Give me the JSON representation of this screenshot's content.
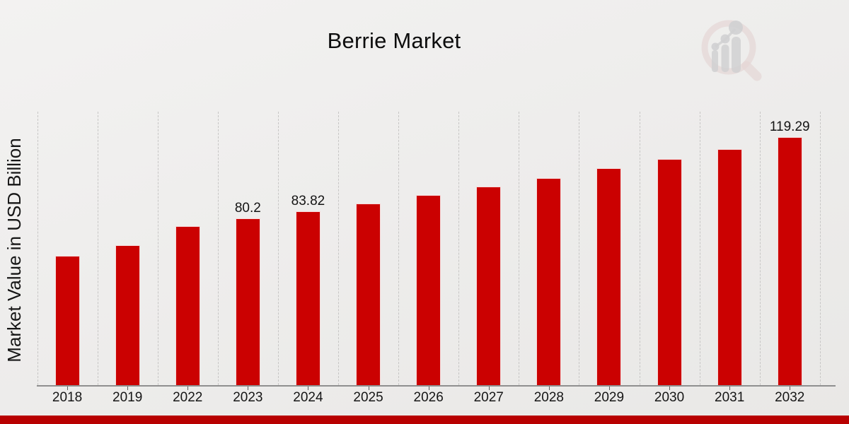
{
  "page": {
    "title": "Berrie Market"
  },
  "y_axis": {
    "label": "Market Value in USD Billion"
  },
  "watermark": {
    "icon": "market-research-magnifier-logo"
  },
  "footer": {
    "accent_color": "#b80000"
  },
  "chart_data": {
    "type": "bar",
    "title": "Berrie Market",
    "xlabel": "",
    "ylabel": "Market Value in USD Billion",
    "categories": [
      "2018",
      "2019",
      "2022",
      "2023",
      "2024",
      "2025",
      "2026",
      "2027",
      "2028",
      "2029",
      "2030",
      "2031",
      "2032"
    ],
    "values": [
      62.2,
      67.2,
      76.5,
      80.2,
      83.82,
      87.3,
      91.6,
      95.5,
      99.6,
      104.3,
      108.8,
      113.5,
      119.29
    ],
    "data_labels": [
      "",
      "",
      "",
      "80.2",
      "83.82",
      "",
      "",
      "",
      "",
      "",
      "",
      "",
      "119.29"
    ],
    "ylim": [
      0,
      131
    ],
    "grid": "vertical-dashed-column-separators",
    "legend": "none",
    "y_axis_ticks": "none",
    "bar_color": "#cb0101",
    "label_color": "#141414"
  }
}
